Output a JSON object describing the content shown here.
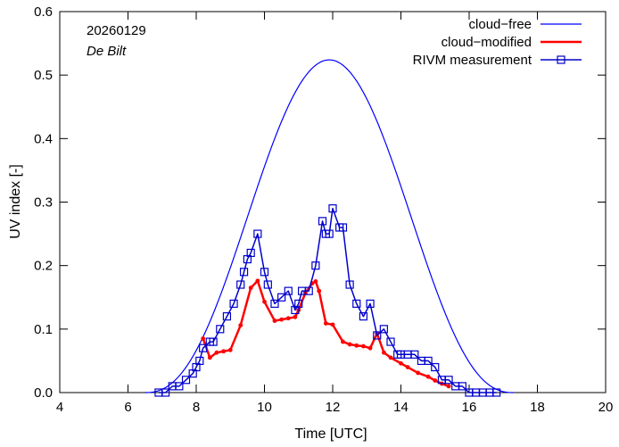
{
  "chart_data": {
    "type": "line",
    "title": "",
    "xlabel": "Time  [UTC]",
    "ylabel": "UV index  [-]",
    "xlim": [
      4,
      20
    ],
    "ylim": [
      0,
      0.6
    ],
    "xticks": [
      "4",
      "6",
      "8",
      "10",
      "12",
      "14",
      "16",
      "18",
      "20"
    ],
    "yticks": [
      "0.0",
      "0.1",
      "0.2",
      "0.3",
      "0.4",
      "0.5",
      "0.6"
    ],
    "grid": false,
    "legend_position": "top-right",
    "annotations": {
      "date": "20260129",
      "station": "De Bilt"
    },
    "series": [
      {
        "name": "cloud−free",
        "color": "#0000ff",
        "marker": "none",
        "model": {
          "peak_time": 11.9,
          "peak_value": 0.524,
          "start_time": 6.5,
          "end_time": 17.3
        }
      },
      {
        "name": "cloud−modified",
        "color": "#ff0000",
        "marker": "dot",
        "x": [
          8.2,
          8.4,
          8.6,
          8.8,
          9.0,
          9.3,
          9.6,
          9.8,
          10.0,
          10.3,
          10.5,
          10.7,
          10.9,
          11.0,
          11.2,
          11.4,
          11.5,
          11.6,
          11.8,
          12.0,
          12.3,
          12.5,
          12.7,
          12.9,
          13.1,
          13.3,
          13.5,
          13.7,
          14.0,
          14.2,
          14.5,
          14.8,
          15.0,
          15.2,
          15.4
        ],
        "y": [
          0.085,
          0.055,
          0.063,
          0.065,
          0.067,
          0.106,
          0.165,
          0.176,
          0.143,
          0.113,
          0.115,
          0.117,
          0.119,
          0.13,
          0.157,
          0.172,
          0.175,
          0.16,
          0.109,
          0.107,
          0.08,
          0.076,
          0.074,
          0.073,
          0.07,
          0.093,
          0.063,
          0.055,
          0.046,
          0.04,
          0.031,
          0.025,
          0.019,
          0.014,
          0.01
        ]
      },
      {
        "name": "RIVM measurement",
        "color": "#0000cc",
        "marker": "square",
        "x": [
          6.9,
          7.1,
          7.3,
          7.5,
          7.7,
          7.9,
          8.0,
          8.1,
          8.2,
          8.4,
          8.5,
          8.7,
          8.9,
          9.1,
          9.3,
          9.4,
          9.5,
          9.6,
          9.8,
          10.0,
          10.1,
          10.3,
          10.5,
          10.7,
          10.9,
          11.0,
          11.1,
          11.3,
          11.5,
          11.7,
          11.8,
          11.9,
          12.0,
          12.2,
          12.3,
          12.5,
          12.7,
          12.9,
          13.1,
          13.3,
          13.5,
          13.7,
          13.9,
          14.0,
          14.2,
          14.4,
          14.6,
          14.8,
          15.0,
          15.2,
          15.4,
          15.6,
          15.8,
          16.0,
          16.2,
          16.4,
          16.6,
          16.8
        ],
        "y": [
          0.0,
          0.0,
          0.01,
          0.01,
          0.02,
          0.03,
          0.04,
          0.05,
          0.07,
          0.08,
          0.08,
          0.1,
          0.12,
          0.14,
          0.17,
          0.19,
          0.21,
          0.22,
          0.25,
          0.19,
          0.17,
          0.14,
          0.15,
          0.16,
          0.13,
          0.14,
          0.16,
          0.16,
          0.2,
          0.27,
          0.25,
          0.25,
          0.29,
          0.26,
          0.26,
          0.17,
          0.14,
          0.12,
          0.14,
          0.09,
          0.1,
          0.08,
          0.06,
          0.06,
          0.06,
          0.06,
          0.05,
          0.05,
          0.04,
          0.02,
          0.02,
          0.01,
          0.01,
          0.0,
          0.0,
          0.0,
          0.0,
          0.0
        ]
      }
    ]
  }
}
